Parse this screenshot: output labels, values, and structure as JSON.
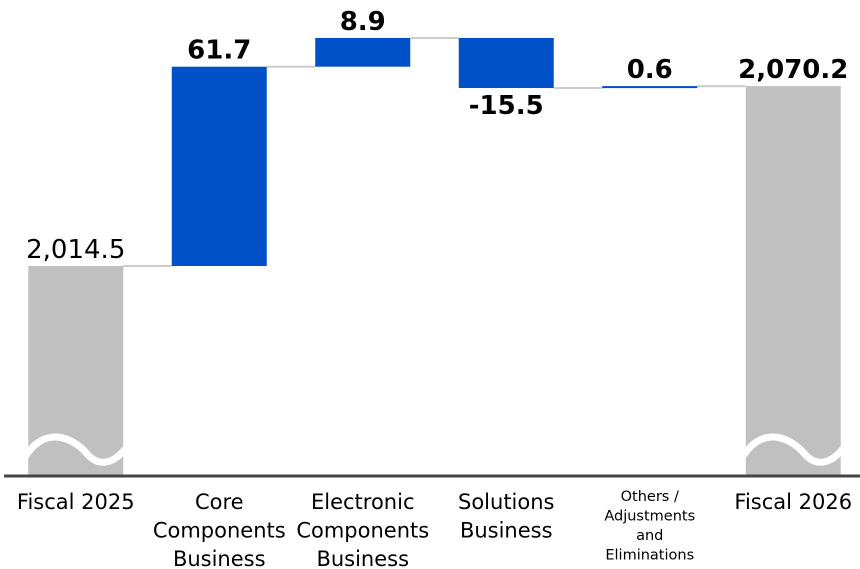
{
  "chart_data": {
    "type": "waterfall",
    "title": "",
    "xlabel": "",
    "ylabel": "",
    "axis_break": true,
    "grid": false,
    "categories": [
      {
        "lines": [
          "Fiscal 2025"
        ],
        "small": false
      },
      {
        "lines": [
          "Core",
          "Components",
          "Business"
        ],
        "small": false
      },
      {
        "lines": [
          "Electronic",
          "Components",
          "Business"
        ],
        "small": false
      },
      {
        "lines": [
          "Solutions",
          "Business"
        ],
        "small": false
      },
      {
        "lines": [
          "Others /",
          "Adjustments",
          "and",
          "Eliminations"
        ],
        "small": true
      },
      {
        "lines": [
          "Fiscal 2026"
        ],
        "small": false
      }
    ],
    "bars": [
      {
        "kind": "total",
        "value": 2014.5,
        "label": "2,014.5",
        "bold": false
      },
      {
        "kind": "delta",
        "value": 61.7,
        "label": "61.7",
        "bold": true
      },
      {
        "kind": "delta",
        "value": 8.9,
        "label": "8.9",
        "bold": true
      },
      {
        "kind": "delta",
        "value": -15.5,
        "label": "-15.5",
        "bold": true
      },
      {
        "kind": "delta",
        "value": 0.6,
        "label": "0.6",
        "bold": true
      },
      {
        "kind": "total",
        "value": 2070.2,
        "label": "2,070.2",
        "bold": true
      }
    ],
    "colors": {
      "total": "#c0c0c0",
      "delta": "#0050c8",
      "connector": "#cccccc",
      "axis": "#444444"
    }
  }
}
